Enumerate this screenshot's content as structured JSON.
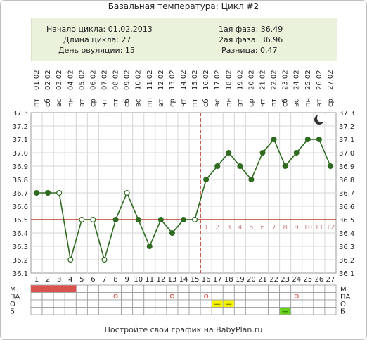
{
  "title": "Базальная температура: Цикл #2",
  "info": {
    "cycle_start": "Начало цикла: 01.02.2013",
    "cycle_length": "Длина цикла: 27",
    "ovulation_day": "День овуляции: 15",
    "phase1": "1ая фаза: 36.49",
    "phase2": "2ая фаза: 36.96",
    "difference": "Разница: 0,47"
  },
  "footer": "Постройте свой график на BabyPlan.ru",
  "colors": {
    "curve": "#2e6b1f",
    "baseline": "#c0392b",
    "ovulation_line": "#c0392b",
    "info_bg": "#eaf2dc",
    "menses": "#d9534f",
    "discharge": "#f7f400",
    "test": "#66d11a"
  },
  "chart_data": {
    "type": "line",
    "title": "Базальная температура: Цикл #2",
    "cycle_days": [
      1,
      2,
      3,
      4,
      5,
      6,
      7,
      8,
      9,
      10,
      11,
      12,
      13,
      14,
      15,
      16,
      17,
      18,
      19,
      20,
      21,
      22,
      23,
      24,
      25,
      26,
      27
    ],
    "weekdays": [
      "пт",
      "сб",
      "вс",
      "пн",
      "вт",
      "ср",
      "чт",
      "пт",
      "сб",
      "вс",
      "пн",
      "вт",
      "ср",
      "чт",
      "пт",
      "сб",
      "вс",
      "пн",
      "вт",
      "ср",
      "чт",
      "пт",
      "сб",
      "вс",
      "пн",
      "вт",
      "ср"
    ],
    "dates": [
      "01.02",
      "02.02",
      "03.02",
      "04.02",
      "05.02",
      "06.02",
      "07.02",
      "08.02",
      "09.02",
      "10.02",
      "11.02",
      "12.02",
      "13.02",
      "14.02",
      "15.02",
      "16.02",
      "17.02",
      "18.02",
      "19.02",
      "20.02",
      "21.02",
      "22.02",
      "23.02",
      "24.02",
      "25.02",
      "26.02",
      "27.02"
    ],
    "temperatures": [
      36.7,
      36.7,
      36.7,
      36.2,
      36.5,
      36.5,
      36.2,
      36.5,
      36.7,
      36.5,
      36.3,
      36.5,
      36.4,
      36.5,
      36.5,
      36.8,
      36.9,
      37.0,
      36.9,
      36.8,
      37.0,
      37.1,
      36.9,
      37.0,
      37.1,
      37.1,
      36.9
    ],
    "hollow_points": [
      3,
      4,
      5,
      6,
      7,
      9,
      15
    ],
    "y_ticks": [
      "37.3",
      "37.2",
      "37.1",
      "37.0",
      "36.9",
      "36.8",
      "36.7",
      "36.6",
      "36.5",
      "36.4",
      "36.3",
      "36.2",
      "36.1"
    ],
    "ylim": [
      36.1,
      37.3
    ],
    "baseline": 36.5,
    "ovulation_day": 15,
    "post_ovulation_labels": [
      "1",
      "2",
      "3",
      "4",
      "5",
      "6",
      "7",
      "8",
      "9",
      "10",
      "11",
      "12"
    ],
    "moon_icon": "moon-icon",
    "marker_rows": [
      {
        "label": "М",
        "key": "menses"
      },
      {
        "label": "ПА",
        "key": "intercourse"
      },
      {
        "label": "О",
        "key": "discharge"
      },
      {
        "label": "Б",
        "key": "test"
      }
    ],
    "markers": {
      "menses": [
        1,
        2,
        3,
        4
      ],
      "intercourse": [
        8,
        13,
        16,
        24
      ],
      "discharge": [
        17,
        18
      ],
      "test": [
        23
      ]
    }
  }
}
